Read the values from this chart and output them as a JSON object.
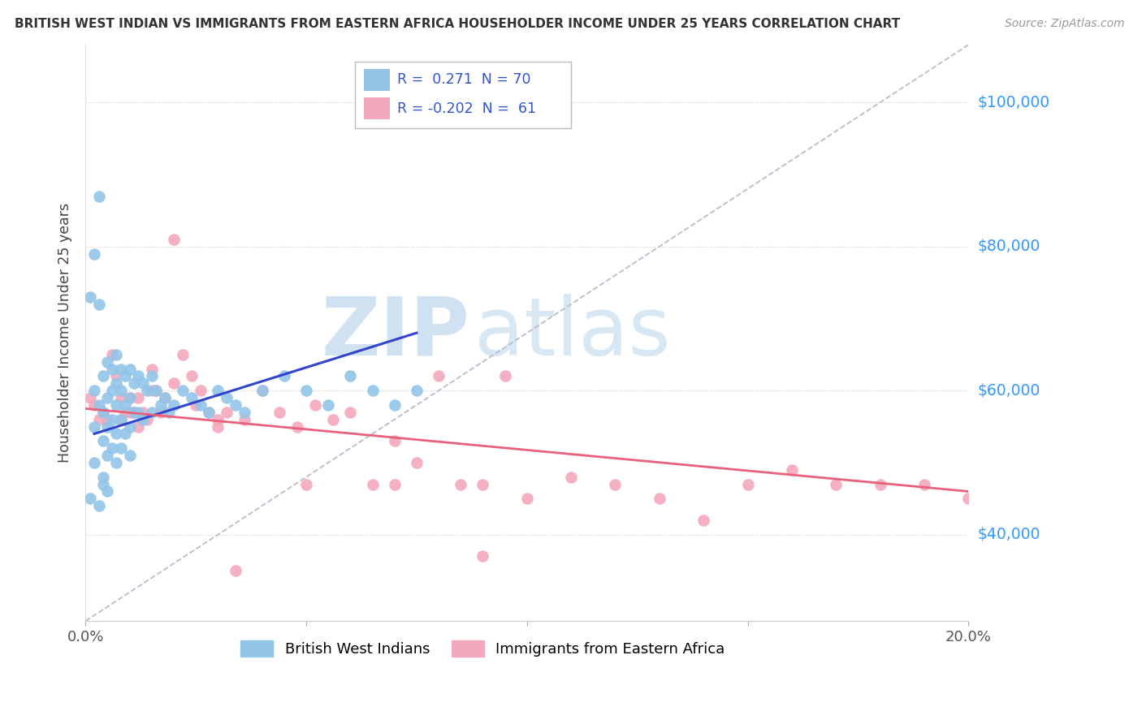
{
  "title": "BRITISH WEST INDIAN VS IMMIGRANTS FROM EASTERN AFRICA HOUSEHOLDER INCOME UNDER 25 YEARS CORRELATION CHART",
  "source": "Source: ZipAtlas.com",
  "ylabel": "Householder Income Under 25 years",
  "xlim": [
    0.0,
    0.2
  ],
  "ylim": [
    28000,
    108000
  ],
  "ytick_vals": [
    40000,
    60000,
    80000,
    100000
  ],
  "ytick_labels": [
    "$40,000",
    "$60,000",
    "$80,000",
    "$100,000"
  ],
  "xtick_vals": [
    0.0,
    0.05,
    0.1,
    0.15,
    0.2
  ],
  "xtick_labels": [
    "0.0%",
    "",
    "",
    "",
    "20.0%"
  ],
  "blue_color": "#92C5E8",
  "pink_color": "#F4A8BC",
  "line_blue": "#3344CC",
  "line_pink": "#E8607A",
  "line_dashed_color": "#BBBBCC",
  "blue_line_x": [
    0.002,
    0.075
  ],
  "blue_line_y": [
    54000,
    68000
  ],
  "pink_line_x": [
    0.0,
    0.2
  ],
  "pink_line_y": [
    57500,
    46000
  ],
  "dashed_line_x": [
    0.0,
    0.2
  ],
  "dashed_line_y": [
    28000,
    108000
  ],
  "blue_x": [
    0.001,
    0.002,
    0.002,
    0.002,
    0.003,
    0.003,
    0.003,
    0.004,
    0.004,
    0.004,
    0.004,
    0.005,
    0.005,
    0.005,
    0.005,
    0.006,
    0.006,
    0.006,
    0.006,
    0.007,
    0.007,
    0.007,
    0.007,
    0.007,
    0.008,
    0.008,
    0.008,
    0.008,
    0.009,
    0.009,
    0.009,
    0.01,
    0.01,
    0.01,
    0.01,
    0.011,
    0.011,
    0.012,
    0.012,
    0.013,
    0.013,
    0.014,
    0.015,
    0.015,
    0.016,
    0.017,
    0.018,
    0.019,
    0.02,
    0.022,
    0.024,
    0.026,
    0.028,
    0.03,
    0.032,
    0.034,
    0.036,
    0.04,
    0.045,
    0.05,
    0.055,
    0.06,
    0.065,
    0.07,
    0.075,
    0.001,
    0.002,
    0.003,
    0.004,
    0.005
  ],
  "blue_y": [
    73000,
    79000,
    60000,
    55000,
    87000,
    72000,
    58000,
    62000,
    57000,
    53000,
    48000,
    64000,
    59000,
    55000,
    51000,
    63000,
    60000,
    56000,
    52000,
    65000,
    61000,
    58000,
    54000,
    50000,
    63000,
    60000,
    56000,
    52000,
    62000,
    58000,
    54000,
    63000,
    59000,
    55000,
    51000,
    61000,
    57000,
    62000,
    57000,
    61000,
    56000,
    60000,
    62000,
    57000,
    60000,
    58000,
    59000,
    57000,
    58000,
    60000,
    59000,
    58000,
    57000,
    60000,
    59000,
    58000,
    57000,
    60000,
    62000,
    60000,
    58000,
    62000,
    60000,
    58000,
    60000,
    45000,
    50000,
    44000,
    47000,
    46000
  ],
  "pink_x": [
    0.001,
    0.002,
    0.003,
    0.004,
    0.005,
    0.006,
    0.007,
    0.008,
    0.009,
    0.01,
    0.011,
    0.012,
    0.013,
    0.014,
    0.015,
    0.016,
    0.017,
    0.018,
    0.02,
    0.022,
    0.024,
    0.026,
    0.028,
    0.03,
    0.032,
    0.034,
    0.036,
    0.04,
    0.044,
    0.048,
    0.052,
    0.056,
    0.06,
    0.065,
    0.07,
    0.075,
    0.08,
    0.085,
    0.09,
    0.095,
    0.1,
    0.11,
    0.12,
    0.13,
    0.14,
    0.15,
    0.16,
    0.17,
    0.18,
    0.19,
    0.2,
    0.008,
    0.01,
    0.012,
    0.015,
    0.02,
    0.025,
    0.03,
    0.05,
    0.07,
    0.09
  ],
  "pink_y": [
    59000,
    58000,
    56000,
    57000,
    56000,
    65000,
    62000,
    59000,
    57000,
    59000,
    57000,
    59000,
    57000,
    56000,
    63000,
    60000,
    57000,
    59000,
    81000,
    65000,
    62000,
    60000,
    57000,
    55000,
    57000,
    35000,
    56000,
    60000,
    57000,
    55000,
    58000,
    56000,
    57000,
    47000,
    53000,
    50000,
    62000,
    47000,
    47000,
    62000,
    45000,
    48000,
    47000,
    45000,
    42000,
    47000,
    49000,
    47000,
    47000,
    47000,
    45000,
    56000,
    57000,
    55000,
    60000,
    61000,
    58000,
    56000,
    47000,
    47000,
    37000
  ]
}
